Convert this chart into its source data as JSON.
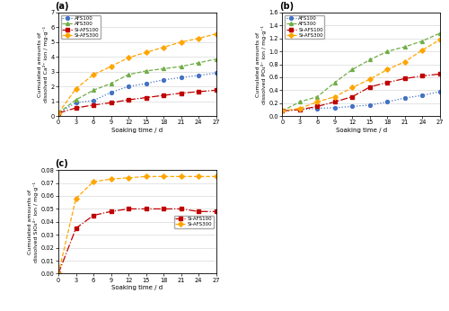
{
  "x": [
    0,
    3,
    6,
    9,
    12,
    15,
    18,
    21,
    24,
    27
  ],
  "ca_AFS100": [
    0.2,
    0.9,
    1.05,
    1.6,
    2.0,
    2.2,
    2.45,
    2.6,
    2.75,
    2.9
  ],
  "ca_AFS300": [
    0.2,
    1.1,
    1.75,
    2.2,
    2.8,
    3.05,
    3.2,
    3.35,
    3.6,
    3.85
  ],
  "ca_SiAFS100": [
    0.2,
    0.55,
    0.75,
    0.9,
    1.1,
    1.25,
    1.4,
    1.55,
    1.65,
    1.75
  ],
  "ca_SiAFS300": [
    0.2,
    1.85,
    2.8,
    3.35,
    3.95,
    4.3,
    4.65,
    5.0,
    5.25,
    5.55
  ],
  "po_AFS100": [
    0.08,
    0.1,
    0.12,
    0.13,
    0.15,
    0.17,
    0.22,
    0.28,
    0.32,
    0.38
  ],
  "po_AFS300": [
    0.08,
    0.22,
    0.3,
    0.52,
    0.72,
    0.87,
    1.0,
    1.07,
    1.16,
    1.28
  ],
  "po_SiAFS100": [
    0.08,
    0.1,
    0.15,
    0.22,
    0.3,
    0.45,
    0.52,
    0.58,
    0.62,
    0.65
  ],
  "po_SiAFS300": [
    0.08,
    0.12,
    0.22,
    0.3,
    0.44,
    0.57,
    0.72,
    0.84,
    1.02,
    1.18
  ],
  "si_SiAFS100": [
    0.0,
    0.035,
    0.045,
    0.048,
    0.05,
    0.05,
    0.05,
    0.05,
    0.048,
    0.048
  ],
  "si_SiAFS300": [
    0.0,
    0.058,
    0.071,
    0.073,
    0.074,
    0.075,
    0.075,
    0.075,
    0.075,
    0.075
  ],
  "color_AFS100": "#4472C4",
  "color_AFS300": "#70AD47",
  "color_SiAFS100": "#C00000",
  "color_SiAFS300": "#FFA500",
  "xlabel": "Soaking time / d",
  "ylabel_a": "Cumulated amounts of\ndissolved Ca²⁺ ion / mg·g⁻¹",
  "ylabel_b": "Cumulated amounts of\ndissolved PO₄³⁻ ion / mg·g⁻¹",
  "ylabel_c": "Cumulated amounts of\ndissolved SiO₄⁴⁻ ion / mg·g⁻¹",
  "label_AFS100": "AFS100",
  "label_AFS300": "AFS300",
  "label_SiAFS100": "Si-AFS100",
  "label_SiAFS300": "Si-AFS300",
  "ylim_a": [
    0,
    7
  ],
  "ylim_b": [
    0,
    1.6
  ],
  "ylim_c": [
    0,
    0.08
  ],
  "yticks_a": [
    0,
    1,
    2,
    3,
    4,
    5,
    6,
    7
  ],
  "yticks_b": [
    0.0,
    0.2,
    0.4,
    0.6,
    0.8,
    1.0,
    1.2,
    1.4,
    1.6
  ],
  "yticks_c": [
    0.0,
    0.01,
    0.02,
    0.03,
    0.04,
    0.05,
    0.06,
    0.07,
    0.08
  ],
  "xticks": [
    0,
    3,
    6,
    9,
    12,
    15,
    18,
    21,
    24,
    27
  ],
  "panel_a": "(a)",
  "panel_b": "(b)",
  "panel_c": "(c)"
}
